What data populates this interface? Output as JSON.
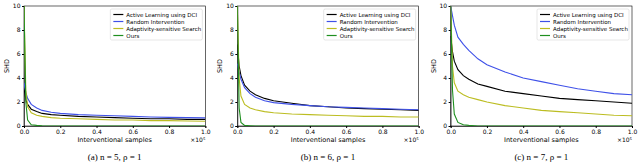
{
  "chart_data": [
    {
      "type": "line",
      "title": "(a) n = 5, ρ = 1",
      "x_label": "Interventional samples",
      "y_label": "SHD",
      "annotations": [
        "×10⁵"
      ],
      "legend": "upper right",
      "xlim": [
        0,
        1
      ],
      "xticks": [
        {
          "value": 0,
          "label": "0.0"
        },
        0.2,
        0.4,
        0.6,
        0.8,
        {
          "value": 1,
          "label": "1.0"
        }
      ],
      "ylim": [
        0,
        10
      ],
      "yticks": [
        0,
        2,
        4,
        6,
        8,
        10
      ],
      "x": [
        0,
        0.01,
        0.02,
        0.04,
        0.07,
        0.1,
        0.15,
        0.2,
        0.3,
        0.4,
        0.5,
        0.6,
        0.7,
        0.8,
        0.9,
        1
      ],
      "series": [
        {
          "name": "Active Learning using DCI",
          "color": "#000000",
          "values": [
            3.2,
            2.2,
            1.8,
            1.4,
            1.2,
            1.05,
            0.95,
            0.9,
            0.8,
            0.75,
            0.7,
            0.65,
            0.6,
            0.6,
            0.55,
            0.55
          ]
        },
        {
          "name": "Random Intervention",
          "color": "#3f51e8",
          "values": [
            3.6,
            2.8,
            2.3,
            1.8,
            1.5,
            1.3,
            1.15,
            1.05,
            0.95,
            0.9,
            0.85,
            0.8,
            0.75,
            0.72,
            0.7,
            0.68
          ]
        },
        {
          "name": "Adaptivity-sensitive Search",
          "color": "#bcbd22",
          "values": [
            10,
            3.0,
            1.6,
            1.1,
            0.9,
            0.8,
            0.7,
            0.65,
            0.6,
            0.55,
            0.5,
            0.5,
            0.45,
            0.45,
            0.42,
            0.4
          ]
        },
        {
          "name": "Ours",
          "color": "#1f8f1f",
          "values": [
            10,
            2.0,
            0.5,
            0.1,
            0.05,
            0.02,
            0,
            0,
            0,
            0,
            0,
            0,
            0,
            0,
            0,
            0
          ]
        }
      ]
    },
    {
      "type": "line",
      "title": "(b) n = 6, ρ = 1",
      "x_label": "Interventional samples",
      "y_label": "SHD",
      "annotations": [
        "×10⁵"
      ],
      "legend": "upper right",
      "xlim": [
        0,
        1
      ],
      "xticks": [
        {
          "value": 0,
          "label": "0.0"
        },
        0.2,
        0.4,
        0.6,
        0.8,
        {
          "value": 1,
          "label": "1.0"
        }
      ],
      "ylim": [
        0,
        10
      ],
      "yticks": [
        0,
        2,
        4,
        6,
        8,
        10
      ],
      "x": [
        0,
        0.01,
        0.02,
        0.04,
        0.07,
        0.1,
        0.15,
        0.2,
        0.3,
        0.4,
        0.5,
        0.6,
        0.7,
        0.8,
        0.9,
        1
      ],
      "series": [
        {
          "name": "Active Learning using DCI",
          "color": "#000000",
          "values": [
            6.8,
            5.0,
            4.2,
            3.4,
            2.9,
            2.6,
            2.3,
            2.1,
            1.9,
            1.7,
            1.6,
            1.5,
            1.45,
            1.4,
            1.35,
            1.3
          ]
        },
        {
          "name": "Random Intervention",
          "color": "#3f51e8",
          "values": [
            5.2,
            4.5,
            3.9,
            3.2,
            2.7,
            2.4,
            2.1,
            1.95,
            1.8,
            1.7,
            1.6,
            1.55,
            1.5,
            1.45,
            1.4,
            1.35
          ]
        },
        {
          "name": "Adaptivity-sensitive Search",
          "color": "#bcbd22",
          "values": [
            10,
            4.0,
            2.5,
            1.8,
            1.5,
            1.35,
            1.2,
            1.1,
            1.0,
            0.95,
            0.9,
            0.85,
            0.8,
            0.8,
            0.75,
            0.75
          ]
        },
        {
          "name": "Ours",
          "color": "#1f8f1f",
          "values": [
            10,
            1.5,
            0.3,
            0.05,
            0.02,
            0,
            0,
            0,
            0,
            0,
            0,
            0,
            0,
            0,
            0,
            0
          ]
        }
      ]
    },
    {
      "type": "line",
      "title": "(c) n = 7, ρ = 1",
      "x_label": "Interventional samples",
      "y_label": "SHD",
      "annotations": [
        "×10⁵"
      ],
      "legend": "upper right",
      "xlim": [
        0,
        1
      ],
      "xticks": [
        {
          "value": 0,
          "label": "0.0"
        },
        0.2,
        0.4,
        0.6,
        0.8,
        {
          "value": 1,
          "label": "1.0"
        }
      ],
      "ylim": [
        0,
        10
      ],
      "yticks": [
        0,
        2,
        4,
        6,
        8,
        10
      ],
      "x": [
        0,
        0.01,
        0.02,
        0.04,
        0.07,
        0.1,
        0.15,
        0.2,
        0.3,
        0.4,
        0.5,
        0.6,
        0.7,
        0.8,
        0.9,
        1
      ],
      "series": [
        {
          "name": "Active Learning using DCI",
          "color": "#000000",
          "values": [
            7.5,
            6.2,
            5.4,
            4.7,
            4.2,
            3.9,
            3.5,
            3.3,
            2.9,
            2.7,
            2.5,
            2.3,
            2.2,
            2.1,
            2.0,
            1.9
          ]
        },
        {
          "name": "Random Intervention",
          "color": "#3f51e8",
          "values": [
            10,
            9.2,
            8.4,
            7.4,
            6.8,
            6.3,
            5.6,
            5.1,
            4.5,
            4.0,
            3.7,
            3.4,
            3.1,
            2.9,
            2.7,
            2.6
          ]
        },
        {
          "name": "Adaptivity-sensitive Search",
          "color": "#bcbd22",
          "values": [
            10,
            5.0,
            3.6,
            2.9,
            2.6,
            2.4,
            2.2,
            2.0,
            1.7,
            1.5,
            1.3,
            1.2,
            1.1,
            1.0,
            0.9,
            0.85
          ]
        },
        {
          "name": "Ours",
          "color": "#1f8f1f",
          "values": [
            10,
            3.0,
            1.0,
            0.3,
            0.1,
            0.05,
            0,
            0,
            0,
            0,
            0,
            0,
            0,
            0,
            0,
            0
          ]
        }
      ]
    }
  ]
}
